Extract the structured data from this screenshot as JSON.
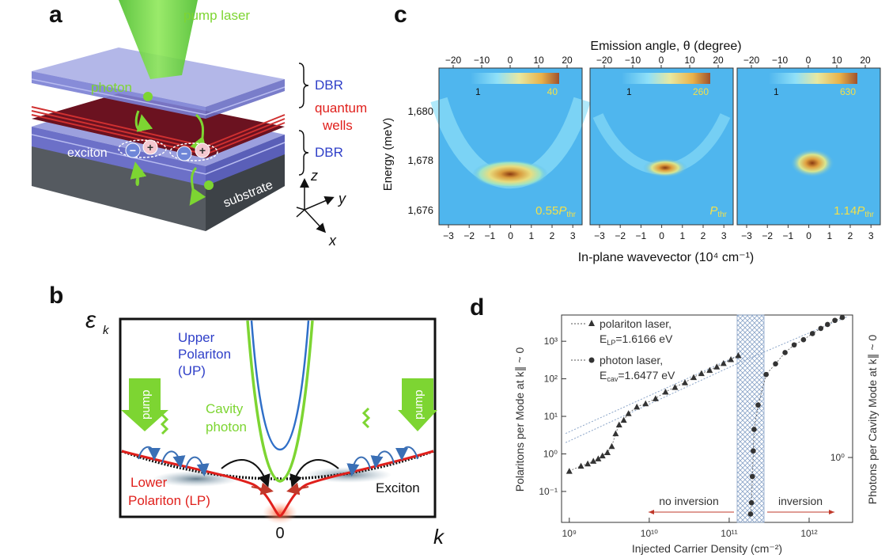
{
  "panels": {
    "a": "a",
    "b": "b",
    "c": "c",
    "d": "d"
  },
  "colors": {
    "green": "#7dd532",
    "blue": "#2f3fc8",
    "red": "#e0201c",
    "darkred": "#5a0d16",
    "black": "#111111"
  },
  "panel_a": {
    "pump_laser": "pump laser",
    "photon": "photon",
    "dbr_top": "DBR",
    "quantum_wells": [
      "quantum",
      "wells"
    ],
    "exciton": "exciton",
    "dbr_bottom": "DBR",
    "substrate": "substrate",
    "axes": {
      "z": "z",
      "y": "y",
      "x": "x"
    }
  },
  "panel_b": {
    "y_axis_symbol": "ε",
    "y_axis_sub": "k",
    "x_axis_symbol": "k",
    "x_zero": "0",
    "upper_polariton": [
      "Upper",
      "Polariton",
      "(UP)"
    ],
    "cavity_photon": [
      "Cavity",
      "photon"
    ],
    "lower_polariton": [
      "Lower",
      "Polariton (LP)"
    ],
    "exciton": "Exciton",
    "pump_left": "pump",
    "pump_right": "pump"
  },
  "panel_c": {
    "top_axis_label": "Emission angle, θ (degree)",
    "bottom_axis_label": "In-plane wavevector (10⁴ cm⁻¹)",
    "y_axis_label": "Energy (meV)",
    "top_ticks": [
      "−20",
      "−10",
      "0",
      "10",
      "20"
    ],
    "bottom_ticks": [
      "−3",
      "−2",
      "−1",
      "0",
      "1",
      "2",
      "3"
    ],
    "y_ticks": [
      "1,680",
      "1,678",
      "1,676"
    ],
    "subpanels": [
      {
        "cbar_min": "1",
        "cbar_max": "40",
        "power_main": "0.55",
        "power_sym": "P",
        "power_sub": "thr"
      },
      {
        "cbar_min": "1",
        "cbar_max": "260",
        "power_main": "",
        "power_sym": "P",
        "power_sub": "thr"
      },
      {
        "cbar_min": "1",
        "cbar_max": "630",
        "power_main": "1.14",
        "power_sym": "P",
        "power_sub": "thr"
      }
    ]
  },
  "panel_d": {
    "left_axis_label": "Polaritons per Mode at k∥ ~ 0",
    "right_axis_label": "Photons per Cavity Mode at k∥ ~ 0",
    "x_axis_label": "Injected Carrier Density (cm⁻²)",
    "x_ticks": [
      "10⁹",
      "10¹⁰",
      "10¹¹",
      "10¹²"
    ],
    "left_ticks": [
      "10⁻¹",
      "10⁰",
      "10¹",
      "10²",
      "10³"
    ],
    "right_ticks": [
      "10⁰"
    ],
    "legend": {
      "polariton_title": "polariton laser,",
      "polariton_energy": "E",
      "polariton_energy_sub": "LP",
      "polariton_energy_val": "=1.6166 eV",
      "photon_title": "photon laser,",
      "photon_energy": "E",
      "photon_energy_sub": "cav",
      "photon_energy_val": "=1.6477 eV"
    },
    "no_inversion": "no inversion",
    "inversion": "inversion"
  },
  "chart_data": {
    "type": "scatter",
    "title": "",
    "xlabel": "Injected Carrier Density (cm⁻²)",
    "ylabel": "Polaritons per Mode at k∥ ~ 0",
    "xscale": "log",
    "yscale": "log",
    "xlim": [
      800000000.0,
      3500000000000.0
    ],
    "ylim": [
      0.015,
      5000
    ],
    "series": [
      {
        "name": "polariton laser, E_LP=1.6166 eV",
        "marker": "triangle",
        "x": [
          1000000000.0,
          1400000000.0,
          1700000000.0,
          2000000000.0,
          2300000000.0,
          2600000000.0,
          3000000000.0,
          3400000000.0,
          3800000000.0,
          4200000000.0,
          4800000000.0,
          5500000000.0,
          7000000000.0,
          9000000000.0,
          12000000000.0,
          16000000000.0,
          21000000000.0,
          28000000000.0,
          36000000000.0,
          45000000000.0,
          57000000000.0,
          70000000000.0,
          85000000000.0,
          105000000000.0,
          130000000000.0
        ],
        "y": [
          0.35,
          0.48,
          0.55,
          0.65,
          0.75,
          0.9,
          1.1,
          1.6,
          3.5,
          6,
          8,
          12,
          18,
          22,
          30,
          45,
          60,
          80,
          110,
          140,
          170,
          210,
          260,
          330,
          420
        ]
      },
      {
        "name": "photon laser, E_cav=1.6477 eV",
        "marker": "circle",
        "x": [
          185000000000.0,
          190000000000.0,
          195000000000.0,
          200000000000.0,
          205000000000.0,
          230000000000.0,
          290000000000.0,
          380000000000.0,
          500000000000.0,
          650000000000.0,
          850000000000.0,
          1100000000000.0,
          1400000000000.0,
          1700000000000.0,
          2100000000000.0,
          2600000000000.0
        ],
        "y": [
          0.025,
          0.05,
          0.25,
          1.2,
          4.5,
          20,
          130,
          250,
          500,
          800,
          1100,
          1600,
          2200,
          2800,
          3600,
          4300
        ]
      }
    ],
    "annotations": [
      "no inversion",
      "inversion"
    ]
  }
}
